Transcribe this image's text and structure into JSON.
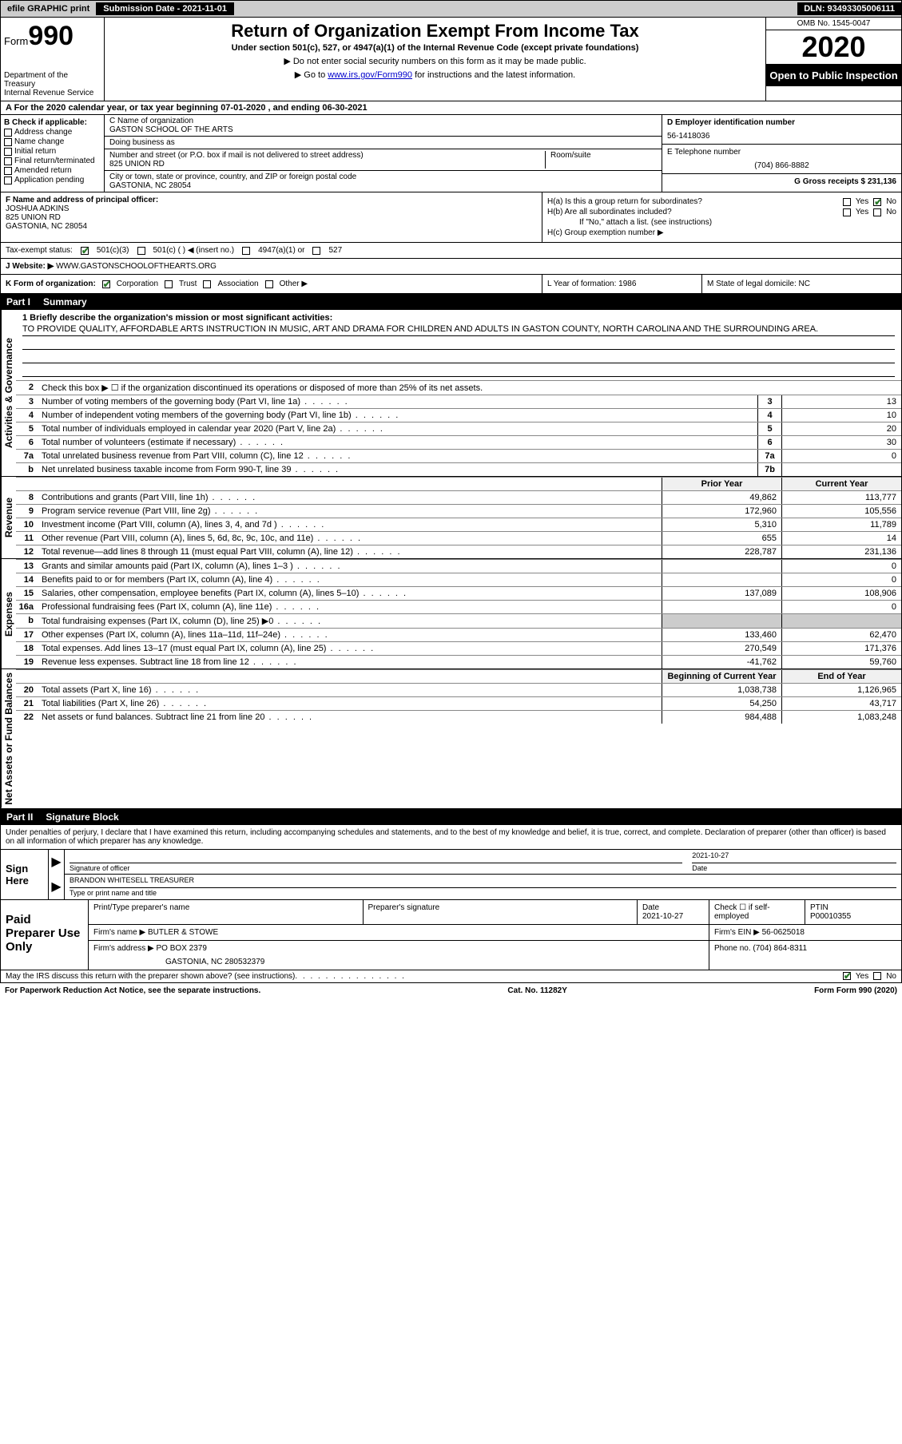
{
  "topbar": {
    "efile": "efile GRAPHIC print",
    "submission_label": "Submission Date - 2021-11-01",
    "dln": "DLN: 93493305006111"
  },
  "header": {
    "form_word": "Form",
    "form_num": "990",
    "dept": "Department of the Treasury",
    "irs": "Internal Revenue Service",
    "title": "Return of Organization Exempt From Income Tax",
    "sub": "Under section 501(c), 527, or 4947(a)(1) of the Internal Revenue Code (except private foundations)",
    "note1": "▶ Do not enter social security numbers on this form as it may be made public.",
    "note2a": "▶ Go to ",
    "note2_link": "www.irs.gov/Form990",
    "note2b": " for instructions and the latest information.",
    "omb": "OMB No. 1545-0047",
    "year": "2020",
    "open_pub": "Open to Public Inspection"
  },
  "rowA": "A For the 2020 calendar year, or tax year beginning 07-01-2020    , and ending 06-30-2021",
  "boxB": {
    "label": "B Check if applicable:",
    "items": [
      "Address change",
      "Name change",
      "Initial return",
      "Final return/terminated",
      "Amended return",
      "Application pending"
    ]
  },
  "boxC": {
    "name_label": "C Name of organization",
    "name": "GASTON SCHOOL OF THE ARTS",
    "dba_label": "Doing business as",
    "dba": "",
    "addr_label": "Number and street (or P.O. box if mail is not delivered to street address)",
    "room_label": "Room/suite",
    "addr": "825 UNION RD",
    "city_label": "City or town, state or province, country, and ZIP or foreign postal code",
    "city": "GASTONIA, NC  28054"
  },
  "boxD": {
    "label": "D Employer identification number",
    "value": "56-1418036"
  },
  "boxE": {
    "label": "E Telephone number",
    "value": "(704) 866-8882"
  },
  "boxG": {
    "label": "G Gross receipts $ 231,136"
  },
  "boxF": {
    "label": "F  Name and address of principal officer:",
    "name": "JOSHUA ADKINS",
    "addr1": "825 UNION RD",
    "addr2": "GASTONIA, NC  28054"
  },
  "boxH": {
    "ha": "H(a)  Is this a group return for subordinates?",
    "hb": "H(b)  Are all subordinates included?",
    "hb_note": "If \"No,\" attach a list. (see instructions)",
    "hc": "H(c)  Group exemption number ▶",
    "yes": "Yes",
    "no": "No"
  },
  "taxExempt": {
    "label": "Tax-exempt status:",
    "c3": "501(c)(3)",
    "c_other": "501(c) (   ) ◀ (insert no.)",
    "a1": "4947(a)(1) or",
    "s527": "527"
  },
  "boxJ": {
    "label": "J     Website: ▶",
    "value": "WWW.GASTONSCHOOLOFTHEARTS.ORG"
  },
  "boxK": {
    "label": "K Form of organization:",
    "corp": "Corporation",
    "trust": "Trust",
    "assoc": "Association",
    "other": "Other ▶"
  },
  "boxL": {
    "label": "L Year of formation: 1986"
  },
  "boxM": {
    "label": "M State of legal domicile: NC"
  },
  "part1": {
    "header_part": "Part I",
    "header_title": "Summary",
    "line1_label": "1  Briefly describe the organization's mission or most significant activities:",
    "mission": "TO PROVIDE QUALITY, AFFORDABLE ARTS INSTRUCTION IN MUSIC, ART AND DRAMA FOR CHILDREN AND ADULTS IN GASTON COUNTY, NORTH CAROLINA AND THE SURROUNDING AREA.",
    "line2": "Check this box ▶ ☐  if the organization discontinued its operations or disposed of more than 25% of its net assets.",
    "rows_gov": [
      {
        "n": "3",
        "desc": "Number of voting members of the governing body (Part VI, line 1a)",
        "box": "3",
        "val": "13"
      },
      {
        "n": "4",
        "desc": "Number of independent voting members of the governing body (Part VI, line 1b)",
        "box": "4",
        "val": "10"
      },
      {
        "n": "5",
        "desc": "Total number of individuals employed in calendar year 2020 (Part V, line 2a)",
        "box": "5",
        "val": "20"
      },
      {
        "n": "6",
        "desc": "Total number of volunteers (estimate if necessary)",
        "box": "6",
        "val": "30"
      },
      {
        "n": "7a",
        "desc": "Total unrelated business revenue from Part VIII, column (C), line 12",
        "box": "7a",
        "val": "0"
      },
      {
        "n": "b",
        "desc": "Net unrelated business taxable income from Form 990-T, line 39",
        "box": "7b",
        "val": ""
      }
    ],
    "col_prior": "Prior Year",
    "col_current": "Current Year",
    "rows_rev": [
      {
        "n": "8",
        "desc": "Contributions and grants (Part VIII, line 1h)",
        "c1": "49,862",
        "c2": "113,777"
      },
      {
        "n": "9",
        "desc": "Program service revenue (Part VIII, line 2g)",
        "c1": "172,960",
        "c2": "105,556"
      },
      {
        "n": "10",
        "desc": "Investment income (Part VIII, column (A), lines 3, 4, and 7d )",
        "c1": "5,310",
        "c2": "11,789"
      },
      {
        "n": "11",
        "desc": "Other revenue (Part VIII, column (A), lines 5, 6d, 8c, 9c, 10c, and 11e)",
        "c1": "655",
        "c2": "14"
      },
      {
        "n": "12",
        "desc": "Total revenue—add lines 8 through 11 (must equal Part VIII, column (A), line 12)",
        "c1": "228,787",
        "c2": "231,136"
      }
    ],
    "rows_exp": [
      {
        "n": "13",
        "desc": "Grants and similar amounts paid (Part IX, column (A), lines 1–3 )",
        "c1": "",
        "c2": "0"
      },
      {
        "n": "14",
        "desc": "Benefits paid to or for members (Part IX, column (A), line 4)",
        "c1": "",
        "c2": "0"
      },
      {
        "n": "15",
        "desc": "Salaries, other compensation, employee benefits (Part IX, column (A), lines 5–10)",
        "c1": "137,089",
        "c2": "108,906"
      },
      {
        "n": "16a",
        "desc": "Professional fundraising fees (Part IX, column (A), line 11e)",
        "c1": "",
        "c2": "0"
      },
      {
        "n": "b",
        "desc": "Total fundraising expenses (Part IX, column (D), line 25) ▶0",
        "c1": "",
        "c2": "",
        "shaded": true
      },
      {
        "n": "17",
        "desc": "Other expenses (Part IX, column (A), lines 11a–11d, 11f–24e)",
        "c1": "133,460",
        "c2": "62,470"
      },
      {
        "n": "18",
        "desc": "Total expenses. Add lines 13–17 (must equal Part IX, column (A), line 25)",
        "c1": "270,549",
        "c2": "171,376"
      },
      {
        "n": "19",
        "desc": "Revenue less expenses. Subtract line 18 from line 12",
        "c1": "-41,762",
        "c2": "59,760"
      }
    ],
    "col_begin": "Beginning of Current Year",
    "col_end": "End of Year",
    "rows_net": [
      {
        "n": "20",
        "desc": "Total assets (Part X, line 16)",
        "c1": "1,038,738",
        "c2": "1,126,965"
      },
      {
        "n": "21",
        "desc": "Total liabilities (Part X, line 26)",
        "c1": "54,250",
        "c2": "43,717"
      },
      {
        "n": "22",
        "desc": "Net assets or fund balances. Subtract line 21 from line 20",
        "c1": "984,488",
        "c2": "1,083,248"
      }
    ],
    "side_gov": "Activities & Governance",
    "side_rev": "Revenue",
    "side_exp": "Expenses",
    "side_net": "Net Assets or Fund Balances"
  },
  "part2": {
    "header_part": "Part II",
    "header_title": "Signature Block",
    "intro": "Under penalties of perjury, I declare that I have examined this return, including accompanying schedules and statements, and to the best of my knowledge and belief, it is true, correct, and complete. Declaration of preparer (other than officer) is based on all information of which preparer has any knowledge.",
    "sign_here": "Sign Here",
    "sig_officer_label": "Signature of officer",
    "date_label": "Date",
    "sig_date": "2021-10-27",
    "name_title": "BRANDON WHITESELL TREASURER",
    "name_title_label": "Type or print name and title",
    "paid_prep": "Paid Preparer Use Only",
    "print_name_label": "Print/Type preparer's name",
    "prep_sig_label": "Preparer's signature",
    "prep_date_label": "Date",
    "prep_date": "2021-10-27",
    "check_self": "Check ☐ if self-employed",
    "ptin_label": "PTIN",
    "ptin": "P00010355",
    "firm_name_label": "Firm's name    ▶",
    "firm_name": "BUTLER & STOWE",
    "firm_ein_label": "Firm's EIN ▶",
    "firm_ein": "56-0625018",
    "firm_addr_label": "Firm's address ▶",
    "firm_addr1": "PO BOX 2379",
    "firm_addr2": "GASTONIA, NC  280532379",
    "phone_label": "Phone no.",
    "phone": "(704) 864-8311",
    "discuss": "May the IRS discuss this return with the preparer shown above? (see instructions)",
    "yes": "Yes",
    "no": "No"
  },
  "footer": {
    "pra": "For Paperwork Reduction Act Notice, see the separate instructions.",
    "cat": "Cat. No. 11282Y",
    "form": "Form 990 (2020)"
  }
}
